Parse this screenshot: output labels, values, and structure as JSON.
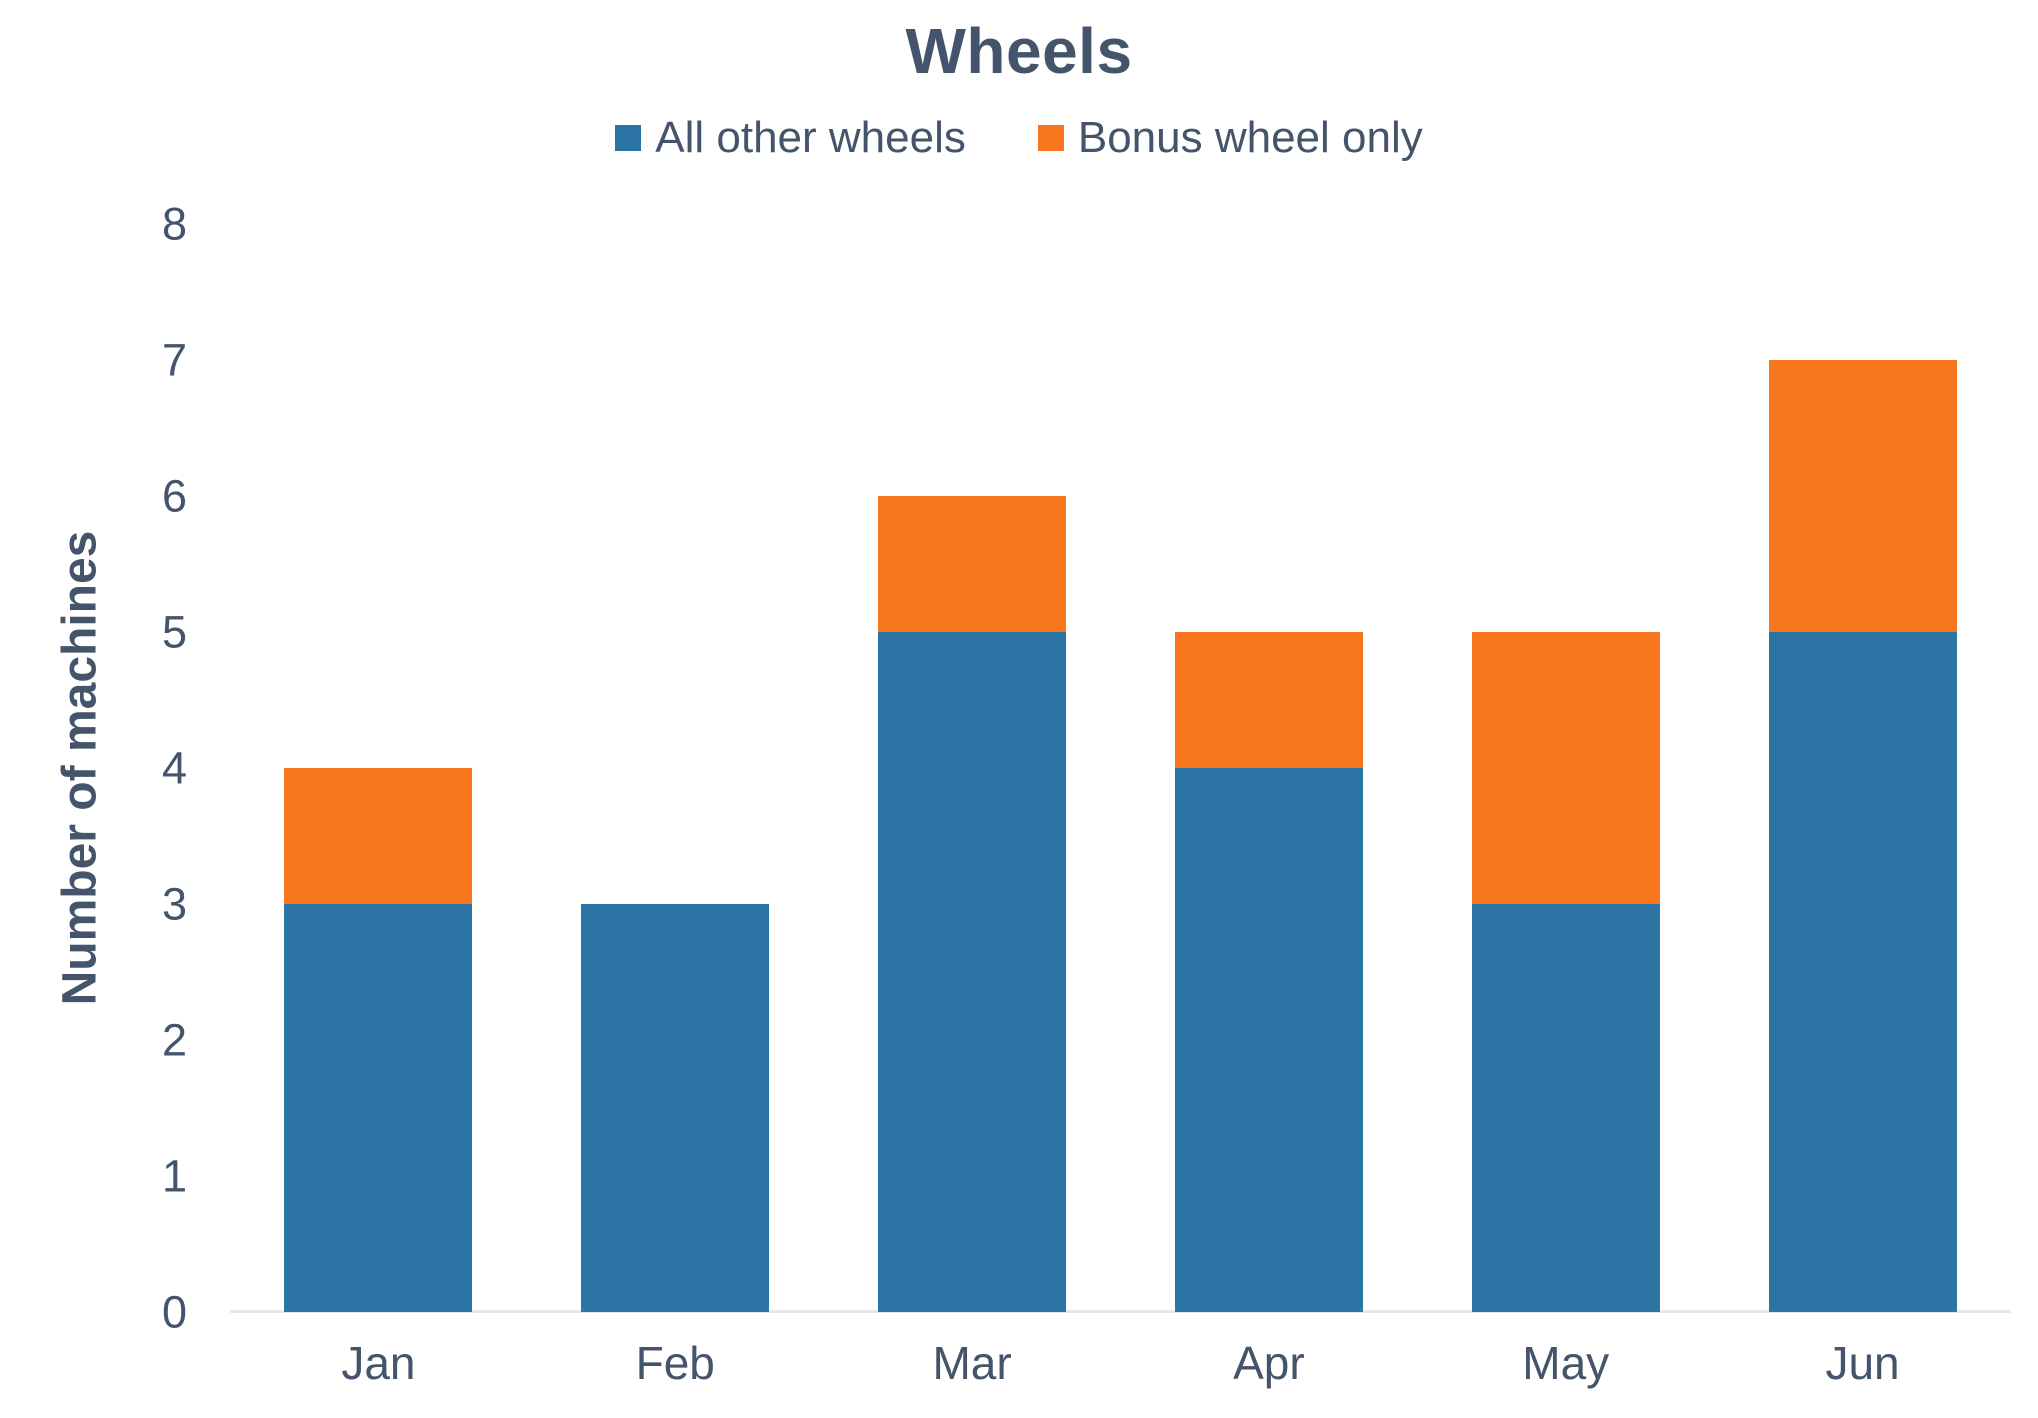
{
  "chart_data": {
    "type": "bar",
    "stacked": true,
    "title": "Wheels",
    "categories": [
      "Jan",
      "Feb",
      "Mar",
      "Apr",
      "May",
      "Jun"
    ],
    "series": [
      {
        "name": "All other wheels",
        "color": "#2C74A3",
        "values": [
          3,
          3,
          5,
          4,
          3,
          5
        ]
      },
      {
        "name": "Bonus wheel only",
        "color": "#F8761D",
        "values": [
          1,
          0,
          1,
          1,
          2,
          2
        ]
      }
    ],
    "totals": [
      4,
      3,
      6,
      5,
      5,
      7
    ],
    "xlabel": "",
    "ylabel": "Number of machines",
    "ylim": [
      0,
      8
    ],
    "ytick_step": 1,
    "yticks": [
      0,
      1,
      2,
      3,
      4,
      5,
      6,
      7,
      8
    ],
    "grid": false,
    "legend_position": "top",
    "colors": {
      "text": "#44546A",
      "axis_line": "#E8E8E8",
      "background": "#FFFFFF"
    }
  }
}
